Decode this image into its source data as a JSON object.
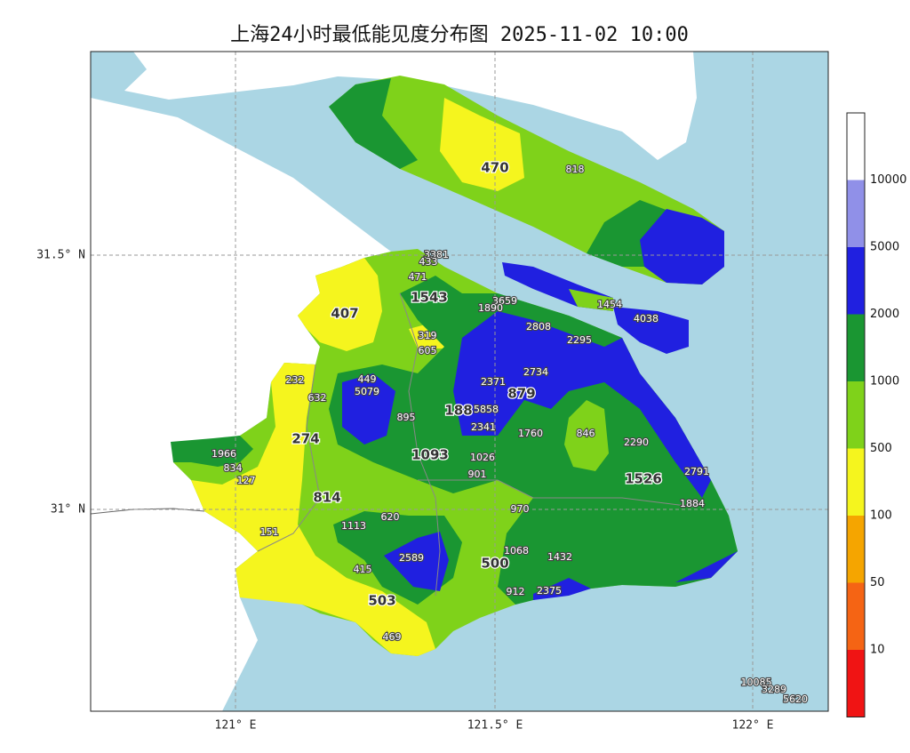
{
  "title": "上海24小时最低能见度分布图 2025-11-02 10:00",
  "lat_labels": [
    "31.5° N",
    "31° N"
  ],
  "lon_labels": [
    "121° E",
    "121.5° E",
    "122° E"
  ],
  "legend_labels": [
    "10000",
    "5000",
    "2000",
    "1000",
    "500",
    "100",
    "50",
    "10"
  ],
  "major_labels": [
    "470",
    "407",
    "1543",
    "274",
    "188",
    "879",
    "1093",
    "814",
    "1526",
    "500",
    "503"
  ],
  "station_labels": [
    "818",
    "3381",
    "433",
    "471",
    "3659",
    "1890",
    "1454",
    "4038",
    "2808",
    "2295",
    "319",
    "605",
    "2734",
    "232",
    "449",
    "632",
    "5079",
    "2371",
    "895",
    "5858",
    "2341",
    "1760",
    "846",
    "2290",
    "1966",
    "834",
    "127",
    "1026",
    "901",
    "2791",
    "970",
    "1884",
    "1113",
    "620",
    "151",
    "1068",
    "1432",
    "2589",
    "415",
    "912",
    "2375",
    "469",
    "10085",
    "3289",
    "5620"
  ]
}
